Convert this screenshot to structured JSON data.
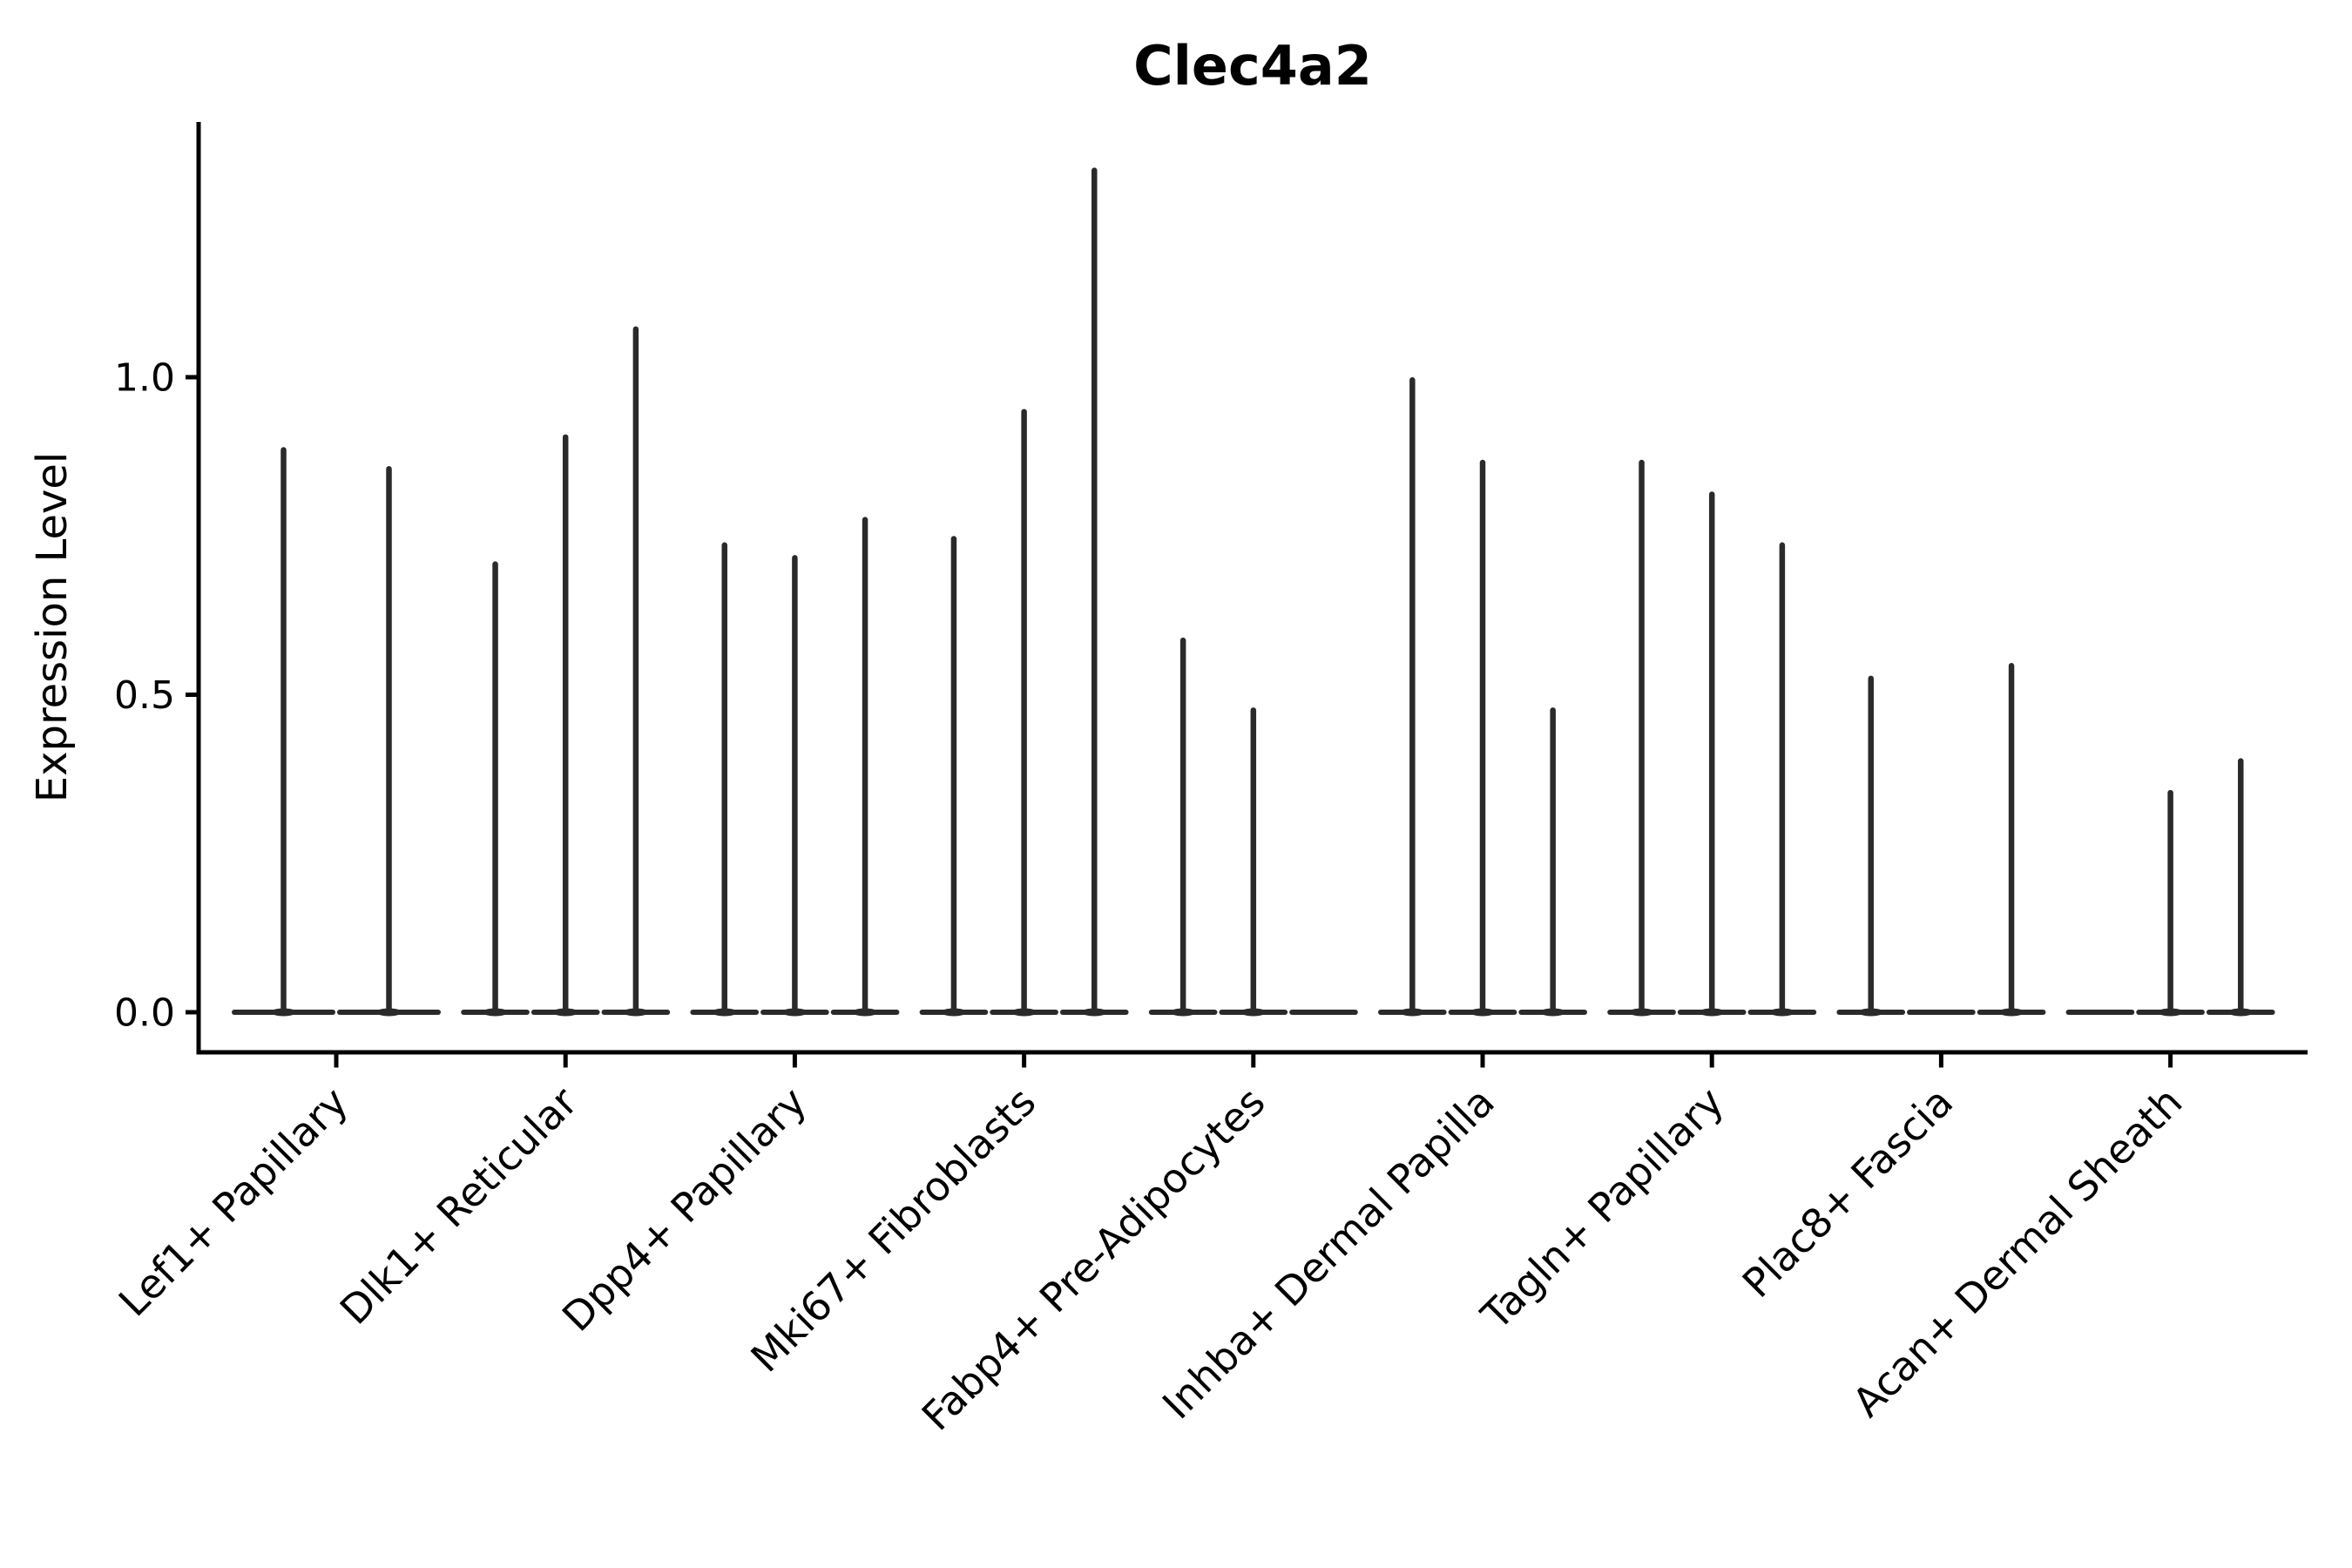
{
  "title": "Clec4a2",
  "ylabel": "Expression Level",
  "colors": {
    "violin": "#2a2a2a",
    "axis": "#000000",
    "text": "#000000",
    "background": "#ffffff"
  },
  "chart_data": {
    "type": "violin",
    "title": "Clec4a2",
    "xlabel": "",
    "ylabel": "Expression Level",
    "ylim": [
      -0.06,
      1.4
    ],
    "yticks": [
      0.0,
      0.5,
      1.0
    ],
    "ytick_labels": [
      "0.0",
      "0.5",
      "1.0"
    ],
    "grid": false,
    "legend": "none",
    "x_tick_rotation_deg": 45,
    "description": "Needle-thin zero-inflated violins: each violin collapses to a flat pancake at 0 with a thin spike up to its maximum expression value. Groups contain 2-3 violins; max 0 means a flat violin with no spike.",
    "categories": [
      "Lef1+ Papillary",
      "Dlk1+ Reticular",
      "Dpp4+ Papillary",
      "Mki67+ Fibroblasts",
      "Fabp4+ Pre-Adipocytes",
      "Inhba+ Dermal Papilla",
      "Tagln+ Papillary",
      "Plac8+ Fascia",
      "Acan+ Dermal Sheath"
    ],
    "groups": [
      {
        "category": "Lef1+ Papillary",
        "violin_maxima": [
          0.89,
          0.86
        ]
      },
      {
        "category": "Dlk1+ Reticular",
        "violin_maxima": [
          0.71,
          0.91,
          1.08
        ]
      },
      {
        "category": "Dpp4+ Papillary",
        "violin_maxima": [
          0.74,
          0.72,
          0.78
        ]
      },
      {
        "category": "Mki67+ Fibroblasts",
        "violin_maxima": [
          0.75,
          0.95,
          1.33
        ]
      },
      {
        "category": "Fabp4+ Pre-Adipocytes",
        "violin_maxima": [
          0.59,
          0.48,
          0.0
        ]
      },
      {
        "category": "Inhba+ Dermal Papilla",
        "violin_maxima": [
          1.0,
          0.87,
          0.48
        ]
      },
      {
        "category": "Tagln+ Papillary",
        "violin_maxima": [
          0.87,
          0.82,
          0.74
        ]
      },
      {
        "category": "Plac8+ Fascia",
        "violin_maxima": [
          0.53,
          0.0,
          0.55
        ]
      },
      {
        "category": "Acan+ Dermal Sheath",
        "violin_maxima": [
          0.0,
          0.35,
          0.4
        ]
      }
    ]
  }
}
